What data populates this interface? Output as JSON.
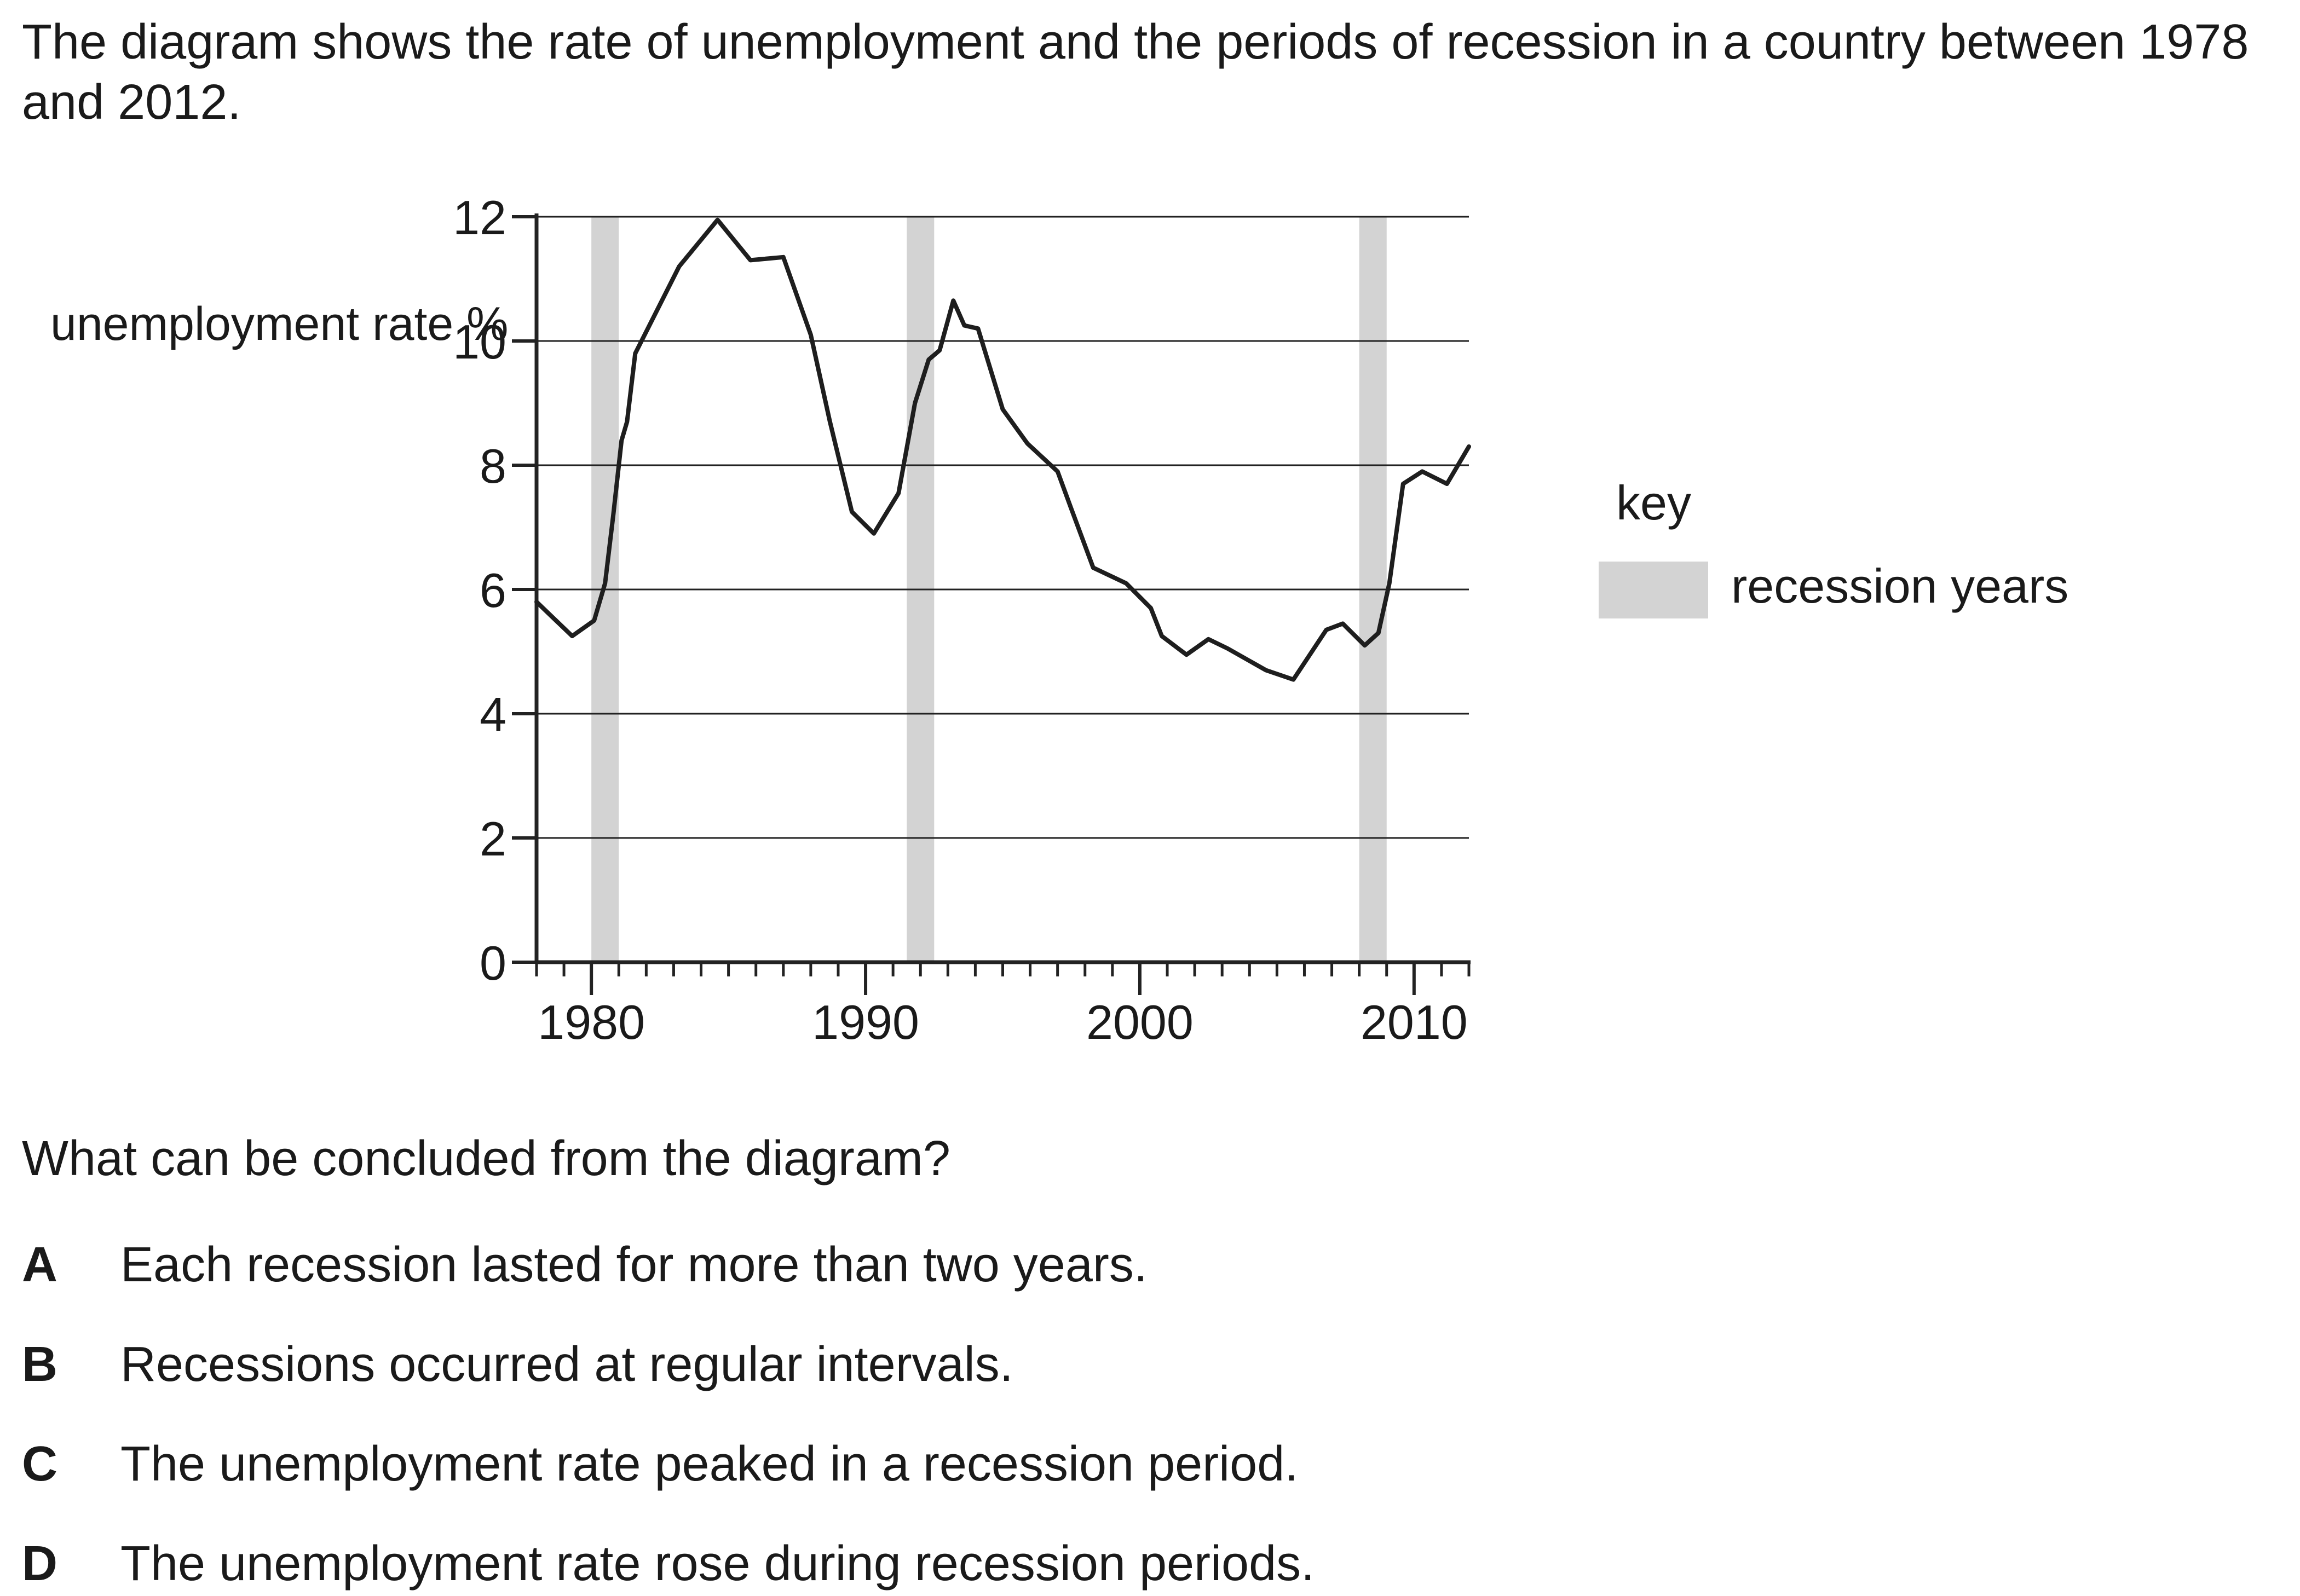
{
  "intro": "The diagram shows the rate of unemployment and the periods of recession in a country between 1978 and 2012.",
  "chart_data": {
    "type": "line",
    "ylabel": "unemployment rate %",
    "xlabel": "",
    "xlim": [
      1978,
      2012
    ],
    "ylim": [
      0,
      12
    ],
    "yticks": [
      "0",
      "2",
      "4",
      "6",
      "8",
      "10",
      "12"
    ],
    "xticks": [
      "1980",
      "1990",
      "2000",
      "2010"
    ],
    "grid": true,
    "series": [
      {
        "x": [
          1978.0,
          1979.3,
          1980.1,
          1980.5,
          1980.8,
          1981.1,
          1981.3,
          1981.6,
          1982.4,
          1983.2,
          1984.6,
          1985.8,
          1987.0,
          1988.0,
          1988.7,
          1989.5,
          1990.3,
          1991.2,
          1991.8,
          1992.3,
          1992.7,
          1993.2,
          1993.6,
          1994.1,
          1995.0,
          1995.9,
          1997.0,
          1997.5,
          1998.3,
          1999.5,
          2000.4,
          2000.8,
          2001.7,
          2002.5,
          2003.2,
          2004.6,
          2005.6,
          2006.8,
          2007.4,
          2008.2,
          2008.7,
          2009.1,
          2009.6,
          2010.3,
          2011.2,
          2012.0
        ],
        "y": [
          5.8,
          5.25,
          5.5,
          6.1,
          7.2,
          8.4,
          8.7,
          9.8,
          10.5,
          11.2,
          11.95,
          11.3,
          11.35,
          10.1,
          8.7,
          7.25,
          6.9,
          7.55,
          9.0,
          9.7,
          9.85,
          10.65,
          10.25,
          10.2,
          8.9,
          8.35,
          7.9,
          7.3,
          6.35,
          6.1,
          5.7,
          5.25,
          4.95,
          5.2,
          5.05,
          4.7,
          4.55,
          5.35,
          5.45,
          5.1,
          5.3,
          6.1,
          7.7,
          7.9,
          7.7,
          8.3
        ]
      }
    ],
    "recession_periods": [
      [
        1980.0,
        1981.0
      ],
      [
        1991.5,
        1992.5
      ],
      [
        2008.0,
        2009.0
      ]
    ]
  },
  "key": {
    "title": "key",
    "label": "recession years",
    "color": "#d3d3d3"
  },
  "question": "What can be concluded from the diagram?",
  "options": [
    {
      "letter": "A",
      "text": "Each recession lasted for more than two years."
    },
    {
      "letter": "B",
      "text": "Recessions occurred at regular intervals."
    },
    {
      "letter": "C",
      "text": "The unemployment rate peaked in a recession period."
    },
    {
      "letter": "D",
      "text": "The unemployment rate rose during recession periods."
    }
  ]
}
